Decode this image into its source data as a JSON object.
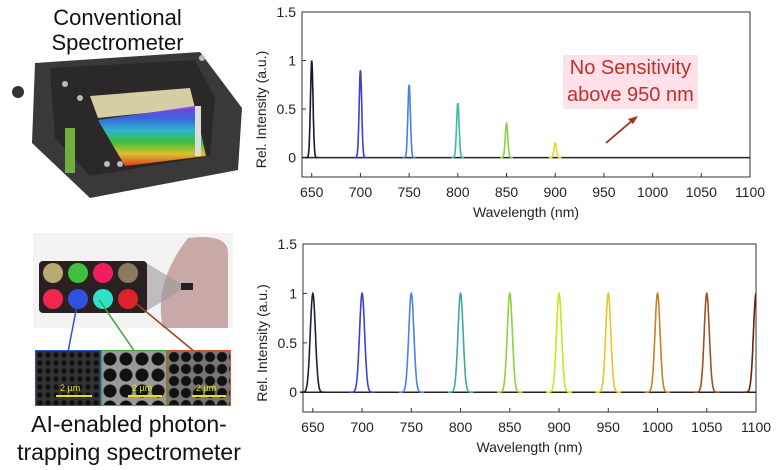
{
  "left_panel": {
    "top_title": "Conventional Spectrometer",
    "bottom_title": "AI-enabled photon-trapping spectrometer",
    "scale_bar_label": "2 µm"
  },
  "annotation": {
    "text_line1": "No Sensitivity",
    "text_line2": "above 950 nm",
    "color": "#c0302a"
  },
  "chart_data": [
    {
      "type": "line",
      "name_hint": "conventional",
      "xlabel": "Wavelength (nm)",
      "ylabel": "Rel. Intensity (a.u.)",
      "xlim": [
        640,
        1100
      ],
      "ylim": [
        -0.2,
        1.5
      ],
      "xticks": [
        650,
        700,
        750,
        800,
        850,
        900,
        950,
        1000,
        1050,
        1100
      ],
      "yticks": [
        0,
        0.5,
        1,
        1.5
      ],
      "ytick_labels": [
        "0",
        "0.5",
        "1",
        "1.5"
      ],
      "grid": false,
      "peaks": [
        {
          "x": 650,
          "y": 1.0,
          "color": "#1c1430"
        },
        {
          "x": 700,
          "y": 0.9,
          "color": "#3a40d0"
        },
        {
          "x": 750,
          "y": 0.75,
          "color": "#4a7ee2"
        },
        {
          "x": 800,
          "y": 0.56,
          "color": "#3cb8a8"
        },
        {
          "x": 850,
          "y": 0.35,
          "color": "#8ad040"
        },
        {
          "x": 900,
          "y": 0.15,
          "color": "#d6e030"
        }
      ]
    },
    {
      "type": "line",
      "name_hint": "ai-enabled",
      "xlabel": "Wavelength (nm)",
      "ylabel": "Rel. Intensity (a.u.)",
      "xlim": [
        640,
        1100
      ],
      "ylim": [
        -0.2,
        1.5
      ],
      "xticks": [
        650,
        700,
        750,
        800,
        850,
        900,
        950,
        1000,
        1050,
        1100
      ],
      "yticks": [
        0,
        0.5,
        1,
        1.5
      ],
      "ytick_labels": [
        "0",
        "0.5",
        "1",
        "1.5"
      ],
      "grid": false,
      "peaks": [
        {
          "x": 650,
          "y": 1.0,
          "color": "#2a1a3a"
        },
        {
          "x": 700,
          "y": 1.0,
          "color": "#3a40d8"
        },
        {
          "x": 750,
          "y": 1.0,
          "color": "#4a82ea"
        },
        {
          "x": 800,
          "y": 1.0,
          "color": "#40a8a0"
        },
        {
          "x": 850,
          "y": 1.0,
          "color": "#92d040"
        },
        {
          "x": 900,
          "y": 1.0,
          "color": "#d2e020"
        },
        {
          "x": 950,
          "y": 1.0,
          "color": "#f0c028"
        },
        {
          "x": 1000,
          "y": 1.0,
          "color": "#c88022"
        },
        {
          "x": 1050,
          "y": 1.0,
          "color": "#a05020"
        },
        {
          "x": 1100,
          "y": 1.0,
          "color": "#702010"
        }
      ]
    }
  ]
}
